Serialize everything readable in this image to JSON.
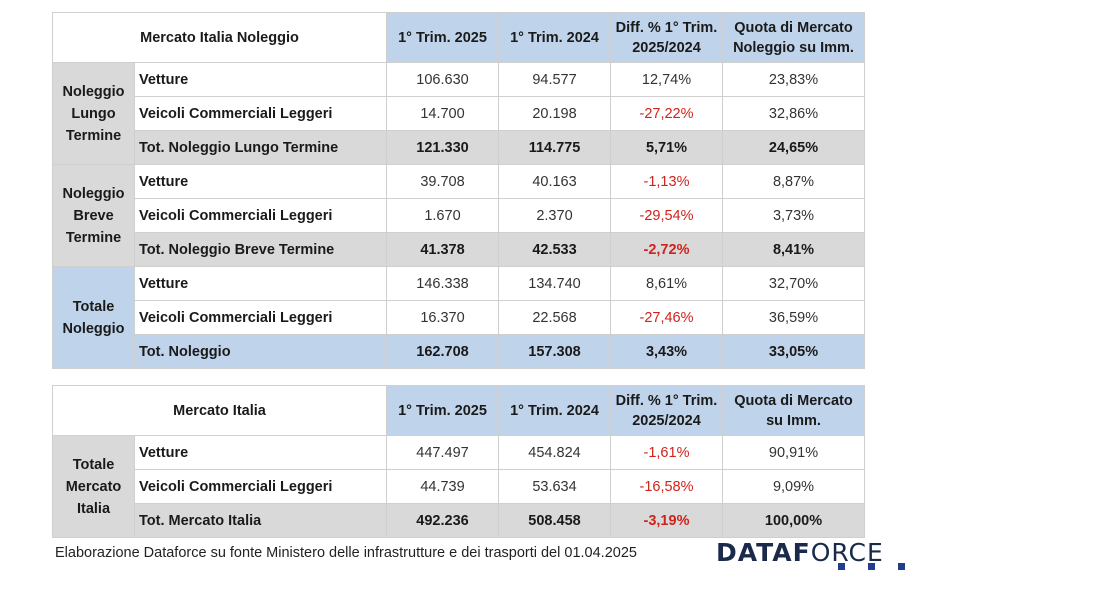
{
  "table1": {
    "title": "Mercato Italia Noleggio",
    "headers": [
      "1° Trim. 2025",
      "1° Trim. 2024",
      "Diff. % 1° Trim. 2025/2024",
      "Quota di Mercato Noleggio su Imm."
    ],
    "groups": [
      {
        "name": "Noleggio Lungo Termine",
        "rows": [
          {
            "label": "Vetture",
            "v2025": "106.630",
            "v2024": "94.577",
            "diff": "12,74%",
            "quota": "23,83%"
          },
          {
            "label": "Veicoli Commerciali Leggeri",
            "v2025": "14.700",
            "v2024": "20.198",
            "diff": "-27,22%",
            "quota": "32,86%"
          },
          {
            "label": "Tot. Noleggio Lungo Termine",
            "v2025": "121.330",
            "v2024": "114.775",
            "diff": "5,71%",
            "quota": "24,65%"
          }
        ]
      },
      {
        "name": "Noleggio Breve Termine",
        "rows": [
          {
            "label": "Vetture",
            "v2025": "39.708",
            "v2024": "40.163",
            "diff": "-1,13%",
            "quota": "8,87%"
          },
          {
            "label": "Veicoli Commerciali Leggeri",
            "v2025": "1.670",
            "v2024": "2.370",
            "diff": "-29,54%",
            "quota": "3,73%"
          },
          {
            "label": "Tot. Noleggio Breve Termine",
            "v2025": "41.378",
            "v2024": "42.533",
            "diff": "-2,72%",
            "quota": "8,41%"
          }
        ]
      },
      {
        "name": "Totale Noleggio",
        "rows": [
          {
            "label": "Vetture",
            "v2025": "146.338",
            "v2024": "134.740",
            "diff": "8,61%",
            "quota": "32,70%"
          },
          {
            "label": "Veicoli Commerciali Leggeri",
            "v2025": "16.370",
            "v2024": "22.568",
            "diff": "-27,46%",
            "quota": "36,59%"
          },
          {
            "label": "Tot. Noleggio",
            "v2025": "162.708",
            "v2024": "157.308",
            "diff": "3,43%",
            "quota": "33,05%"
          }
        ]
      }
    ]
  },
  "table2": {
    "title": "Mercato Italia",
    "headers": [
      "1° Trim. 2025",
      "1° Trim. 2024",
      "Diff. % 1° Trim. 2025/2024",
      "Quota di Mercato su Imm."
    ],
    "groups": [
      {
        "name": "Totale Mercato Italia",
        "rows": [
          {
            "label": "Vetture",
            "v2025": "447.497",
            "v2024": "454.824",
            "diff": "-1,61%",
            "quota": "90,91%"
          },
          {
            "label": "Veicoli Commerciali Leggeri",
            "v2025": "44.739",
            "v2024": "53.634",
            "diff": "-16,58%",
            "quota": "9,09%"
          },
          {
            "label": "Tot. Mercato Italia",
            "v2025": "492.236",
            "v2024": "508.458",
            "diff": "-3,19%",
            "quota": "100,00%"
          }
        ]
      }
    ]
  },
  "footer": {
    "source": "Elaborazione Dataforce su fonte Ministero delle infrastrutture e dei trasporti del 01.04.2025",
    "logo_bold": "DATAF",
    "logo_light": "ORCE"
  },
  "colors": {
    "header_blue": "#bfd3ea",
    "group_gray": "#d9d9d9",
    "negative_red": "#d0231c",
    "logo_blue": "#1f3f8a"
  }
}
